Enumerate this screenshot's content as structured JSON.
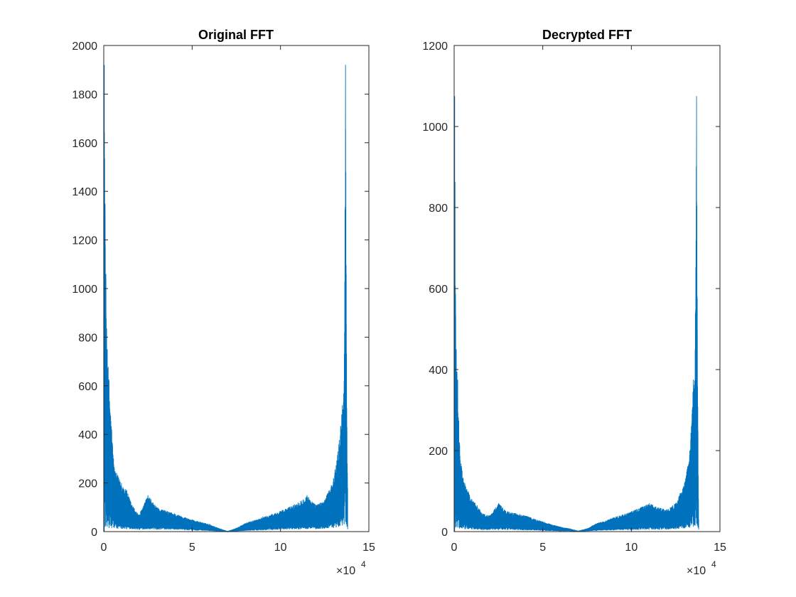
{
  "chart_data": [
    {
      "type": "line",
      "title": "Original FFT",
      "xlabel": "",
      "ylabel": "",
      "xlim": [
        0,
        15
      ],
      "ylim": [
        0,
        2000
      ],
      "x_ticks": [
        0,
        5,
        10,
        15
      ],
      "y_ticks": [
        0,
        200,
        400,
        600,
        800,
        1000,
        1200,
        1400,
        1600,
        1800,
        2000
      ],
      "x_exponent": {
        "base": "×10",
        "power": "4"
      },
      "grid": false,
      "line_color": "#0072BD",
      "series": [
        {
          "x": [
            0,
            0.03,
            0.08,
            0.12,
            0.2,
            0.3,
            0.45,
            0.6,
            0.8,
            1.0,
            1.3,
            1.6,
            2.0,
            2.5,
            3.0,
            4.0,
            5.0,
            6.0,
            6.5,
            7.0,
            7.5,
            8.0,
            9.0,
            10.0,
            11.0,
            11.5,
            12.0,
            12.5,
            13.0,
            13.3,
            13.5,
            13.6,
            13.68,
            13.72,
            13.76,
            13.8
          ],
          "upper": [
            1920,
            1920,
            1300,
            1060,
            750,
            620,
            420,
            260,
            230,
            200,
            170,
            110,
            70,
            150,
            100,
            75,
            50,
            30,
            15,
            2,
            15,
            35,
            60,
            85,
            120,
            150,
            110,
            130,
            220,
            360,
            520,
            620,
            1920,
            1060,
            430,
            180
          ],
          "lower": [
            0,
            0,
            20,
            25,
            20,
            15,
            15,
            15,
            12,
            12,
            10,
            10,
            8,
            10,
            8,
            8,
            5,
            3,
            1,
            0,
            1,
            3,
            5,
            8,
            10,
            10,
            10,
            12,
            15,
            20,
            25,
            30,
            40,
            30,
            20,
            10
          ]
        }
      ]
    },
    {
      "type": "line",
      "title": "Decrypted FFT",
      "xlabel": "",
      "ylabel": "",
      "xlim": [
        0,
        15
      ],
      "ylim": [
        0,
        1200
      ],
      "x_ticks": [
        0,
        5,
        10,
        15
      ],
      "y_ticks": [
        0,
        200,
        400,
        600,
        800,
        1000,
        1200
      ],
      "x_exponent": {
        "base": "×10",
        "power": "4"
      },
      "grid": false,
      "line_color": "#0072BD",
      "series": [
        {
          "x": [
            0,
            0.03,
            0.08,
            0.12,
            0.2,
            0.3,
            0.45,
            0.6,
            0.8,
            1.0,
            1.3,
            1.6,
            2.0,
            2.5,
            3.0,
            4.0,
            5.0,
            6.0,
            6.5,
            7.0,
            7.5,
            8.0,
            9.0,
            10.0,
            11.0,
            11.5,
            12.0,
            12.5,
            13.0,
            13.3,
            13.5,
            13.6,
            13.68,
            13.72,
            13.76,
            13.8
          ],
          "upper": [
            1075,
            1075,
            575,
            450,
            375,
            220,
            150,
            120,
            100,
            80,
            65,
            45,
            40,
            70,
            50,
            40,
            25,
            12,
            8,
            2,
            8,
            20,
            35,
            50,
            70,
            60,
            55,
            70,
            120,
            200,
            375,
            450,
            1075,
            575,
            250,
            30
          ],
          "lower": [
            0,
            0,
            10,
            12,
            10,
            8,
            8,
            6,
            6,
            5,
            5,
            4,
            4,
            5,
            4,
            3,
            2,
            1,
            1,
            0,
            1,
            2,
            3,
            4,
            5,
            5,
            5,
            6,
            8,
            10,
            12,
            15,
            20,
            15,
            10,
            5
          ]
        }
      ]
    }
  ]
}
